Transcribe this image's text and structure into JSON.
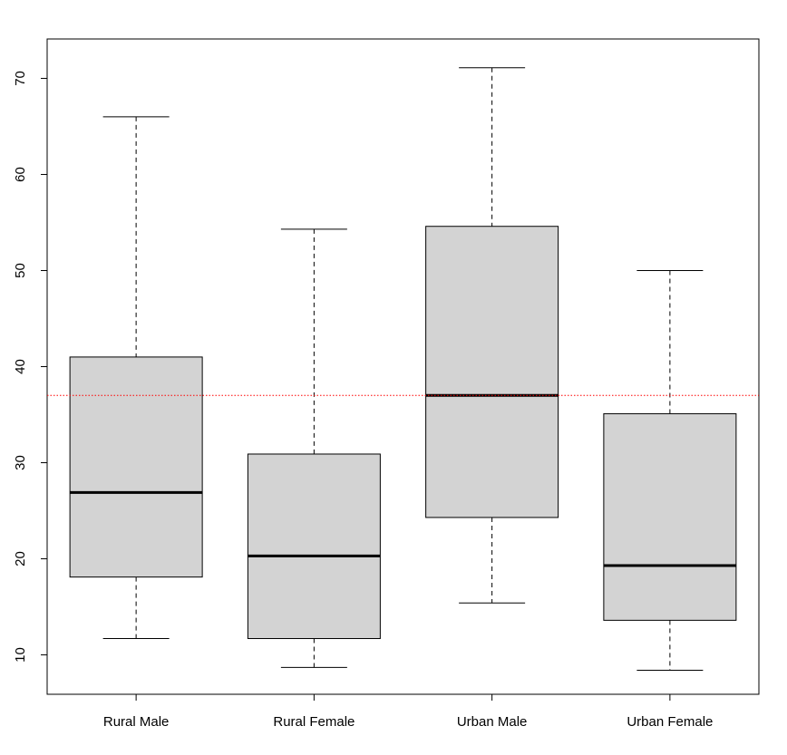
{
  "chart_data": {
    "type": "boxplot",
    "title": "",
    "xlabel": "",
    "ylabel": "",
    "categories": [
      "Rural Male",
      "Rural Female",
      "Urban Male",
      "Urban Female"
    ],
    "boxes": [
      {
        "category": "Rural Male",
        "min": 11.7,
        "q1": 18.1,
        "median": 26.9,
        "q3": 41.0,
        "max": 66.0
      },
      {
        "category": "Rural Female",
        "min": 8.7,
        "q1": 11.7,
        "median": 20.3,
        "q3": 30.9,
        "max": 54.3
      },
      {
        "category": "Urban Male",
        "min": 15.4,
        "q1": 24.3,
        "median": 37.0,
        "q3": 54.6,
        "max": 71.1
      },
      {
        "category": "Urban Female",
        "min": 8.4,
        "q1": 13.6,
        "median": 19.3,
        "q3": 35.1,
        "max": 50.0
      }
    ],
    "yticks": [
      10,
      20,
      30,
      40,
      50,
      60,
      70
    ],
    "ylim": [
      5.9,
      74.1
    ],
    "reference_line": {
      "y": 37.0,
      "color": "#ff0000",
      "style": "dotted"
    },
    "box_fill": "#d3d3d3",
    "grid": false
  }
}
